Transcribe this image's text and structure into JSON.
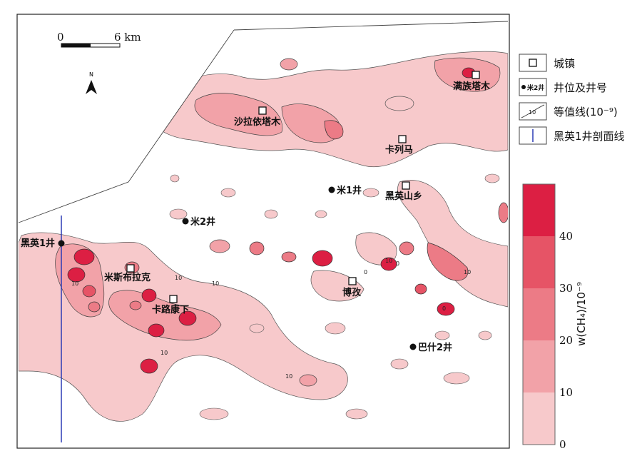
{
  "scale_bar": {
    "zero": "0",
    "end": "6 km"
  },
  "north": {
    "label": "N"
  },
  "towns": [
    {
      "name": "满族塔木"
    },
    {
      "name": "沙拉依塔木"
    },
    {
      "name": "卡列马"
    },
    {
      "name": "黑英山乡"
    },
    {
      "name": "米斯布拉克"
    },
    {
      "name": "卡路康下"
    },
    {
      "name": "博孜"
    }
  ],
  "wells": [
    {
      "name": "米1井"
    },
    {
      "name": "米2井"
    },
    {
      "name": "黑英1井"
    },
    {
      "name": "巴什2井"
    }
  ],
  "legend": {
    "town": "城镇",
    "well": "井位及井号",
    "well_symbol_text": "米2井",
    "contour": "等值线(10⁻⁹)",
    "contour_sample": "10",
    "section": "黑英1井剖面线"
  },
  "colorbar": {
    "title": "w(CH₄)/10⁻⁹",
    "ticks": [
      "0",
      "10",
      "20",
      "30",
      "40"
    ],
    "colors": [
      "#f7c9cb",
      "#f2a2a8",
      "#ec7b86",
      "#e65466",
      "#dc1f43"
    ]
  },
  "contour_labels": [
    "10",
    "0",
    "10",
    "10",
    "10",
    "10",
    "0",
    "10",
    "0",
    "10"
  ]
}
